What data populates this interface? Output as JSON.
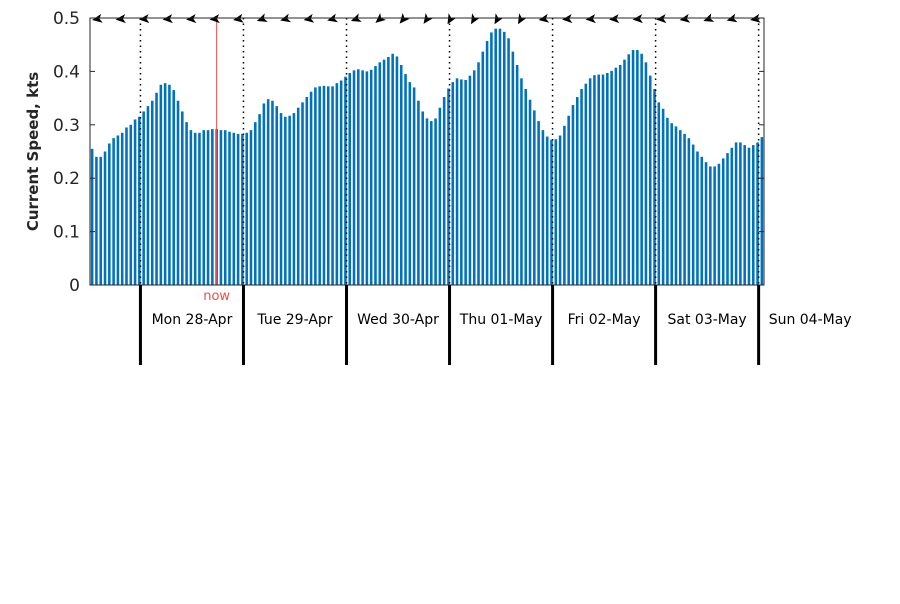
{
  "chart_data": {
    "type": "bar",
    "ylabel": "Current Speed, kts",
    "ylim": [
      0,
      0.5
    ],
    "yticks": [
      "0",
      "0.1",
      "0.2",
      "0.3",
      "0.4",
      "0.5"
    ],
    "bar_color": "#0072bd",
    "now_label": "now",
    "now_color": "#e8504b",
    "now_at_bar": 29.5,
    "bars_per_day": 24,
    "day_labels": [
      "Mon 28-Apr",
      "Tue 29-Apr",
      "Wed 30-Apr",
      "Thu 01-May",
      "Fri 02-May",
      "Sat 03-May",
      "Sun 04-May"
    ],
    "direction_arrows": "along top axis",
    "values": [
      0.255,
      0.24,
      0.24,
      0.25,
      0.265,
      0.275,
      0.28,
      0.285,
      0.295,
      0.3,
      0.31,
      0.315,
      0.325,
      0.335,
      0.345,
      0.36,
      0.375,
      0.378,
      0.375,
      0.365,
      0.345,
      0.325,
      0.305,
      0.29,
      0.285,
      0.285,
      0.29,
      0.29,
      0.292,
      0.292,
      0.29,
      0.29,
      0.287,
      0.285,
      0.283,
      0.283,
      0.285,
      0.29,
      0.305,
      0.32,
      0.34,
      0.348,
      0.345,
      0.335,
      0.322,
      0.315,
      0.317,
      0.322,
      0.332,
      0.342,
      0.352,
      0.362,
      0.37,
      0.372,
      0.373,
      0.372,
      0.372,
      0.378,
      0.383,
      0.39,
      0.397,
      0.402,
      0.404,
      0.402,
      0.4,
      0.403,
      0.41,
      0.417,
      0.422,
      0.427,
      0.433,
      0.428,
      0.412,
      0.395,
      0.38,
      0.37,
      0.345,
      0.325,
      0.312,
      0.307,
      0.312,
      0.332,
      0.352,
      0.368,
      0.38,
      0.387,
      0.385,
      0.384,
      0.392,
      0.402,
      0.417,
      0.437,
      0.457,
      0.473,
      0.48,
      0.48,
      0.474,
      0.462,
      0.437,
      0.412,
      0.387,
      0.367,
      0.347,
      0.327,
      0.307,
      0.29,
      0.278,
      0.272,
      0.273,
      0.28,
      0.298,
      0.317,
      0.337,
      0.352,
      0.367,
      0.377,
      0.387,
      0.393,
      0.394,
      0.394,
      0.397,
      0.401,
      0.407,
      0.412,
      0.422,
      0.432,
      0.44,
      0.44,
      0.433,
      0.417,
      0.392,
      0.367,
      0.342,
      0.33,
      0.313,
      0.303,
      0.297,
      0.29,
      0.283,
      0.275,
      0.263,
      0.25,
      0.24,
      0.23,
      0.222,
      0.222,
      0.227,
      0.237,
      0.247,
      0.257,
      0.267,
      0.267,
      0.262,
      0.257,
      0.262,
      0.267,
      0.277
    ]
  }
}
